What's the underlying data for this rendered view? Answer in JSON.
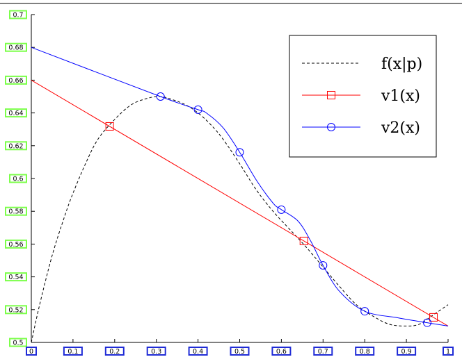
{
  "chart_data": {
    "type": "line",
    "xlim": [
      0,
      1
    ],
    "ylim": [
      0.5,
      0.7
    ],
    "x_ticks": [
      "0",
      "0.1",
      "0.2",
      "0.3",
      "0.4",
      "0.5",
      "0.6",
      "0.7",
      "0.8",
      "0.9",
      "1"
    ],
    "y_ticks": [
      "0.5",
      "0.52",
      "0.54",
      "0.56",
      "0.58",
      "0.6",
      "0.62",
      "0.64",
      "0.66",
      "0.68",
      "0.7"
    ],
    "grid": false,
    "legend_position": "top-right",
    "series": [
      {
        "name": "f(x|p)",
        "style": "dashed",
        "color": "#000000",
        "marker": "none",
        "x": [
          0,
          0.02,
          0.05,
          0.08,
          0.1,
          0.13,
          0.16,
          0.2,
          0.24,
          0.28,
          0.31,
          0.34,
          0.37,
          0.4,
          0.43,
          0.46,
          0.5,
          0.54,
          0.58,
          0.62,
          0.66,
          0.7,
          0.74,
          0.78,
          0.82,
          0.86,
          0.9,
          0.93,
          0.96,
          1.0
        ],
        "y": [
          0.5,
          0.523,
          0.553,
          0.577,
          0.591,
          0.609,
          0.624,
          0.636,
          0.645,
          0.649,
          0.65,
          0.648,
          0.645,
          0.64,
          0.633,
          0.624,
          0.609,
          0.593,
          0.58,
          0.569,
          0.558,
          0.546,
          0.534,
          0.523,
          0.516,
          0.511,
          0.51,
          0.511,
          0.516,
          0.523
        ]
      },
      {
        "name": "v1(x)",
        "style": "solid",
        "color": "#ff0000",
        "marker": "square",
        "x": [
          0,
          1
        ],
        "y": [
          0.66,
          0.51
        ],
        "markers_x": [
          0.188,
          0.654,
          0.965
        ],
        "markers_y": [
          0.6318,
          0.5619,
          0.5153
        ]
      },
      {
        "name": "v2(x)",
        "style": "solid",
        "color": "#0000ff",
        "marker": "circle",
        "x": [
          0,
          0.31,
          0.4,
          0.42,
          0.46,
          0.5,
          0.54,
          0.58,
          0.6,
          0.64,
          0.67,
          0.7,
          0.74,
          0.8,
          0.88,
          0.95,
          1.0
        ],
        "y": [
          0.68,
          0.65,
          0.642,
          0.64,
          0.631,
          0.616,
          0.599,
          0.585,
          0.581,
          0.574,
          0.562,
          0.547,
          0.531,
          0.519,
          0.515,
          0.512,
          0.51
        ],
        "markers_x": [
          0.31,
          0.4,
          0.5,
          0.6,
          0.7,
          0.8,
          0.95
        ],
        "markers_y": [
          0.65,
          0.642,
          0.616,
          0.581,
          0.547,
          0.519,
          0.512
        ]
      }
    ],
    "legend": [
      {
        "label": "f(x|p)",
        "series": 0
      },
      {
        "label": "v1(x)",
        "series": 1
      },
      {
        "label": "v2(x)",
        "series": 2
      }
    ]
  }
}
